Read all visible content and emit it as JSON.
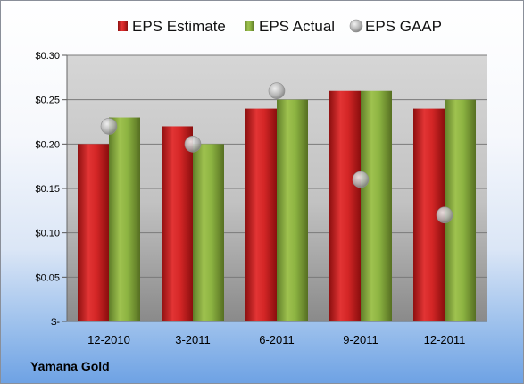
{
  "company": "Yamana Gold",
  "chart_data": {
    "type": "bar",
    "categories": [
      "12-2010",
      "3-2011",
      "6-2011",
      "9-2011",
      "12-2011"
    ],
    "series": [
      {
        "name": "EPS Estimate",
        "kind": "bar",
        "color": "#d42a2a",
        "values": [
          0.2,
          0.22,
          0.24,
          0.26,
          0.24
        ]
      },
      {
        "name": "EPS Actual",
        "kind": "bar",
        "color": "#8cb341",
        "values": [
          0.23,
          0.2,
          0.25,
          0.26,
          0.25
        ]
      },
      {
        "name": "EPS GAAP",
        "kind": "marker",
        "color": "#b7b7b7",
        "values": [
          0.22,
          0.2,
          0.26,
          0.16,
          0.12
        ]
      }
    ],
    "ylim": [
      0,
      0.3
    ],
    "yticks": [
      0,
      0.05,
      0.1,
      0.15,
      0.2,
      0.25,
      0.3
    ],
    "ytick_labels": [
      "$-",
      "$0.05",
      "$0.10",
      "$0.15",
      "$0.20",
      "$0.25",
      "$0.30"
    ],
    "grid": true,
    "legend_position": "top"
  }
}
